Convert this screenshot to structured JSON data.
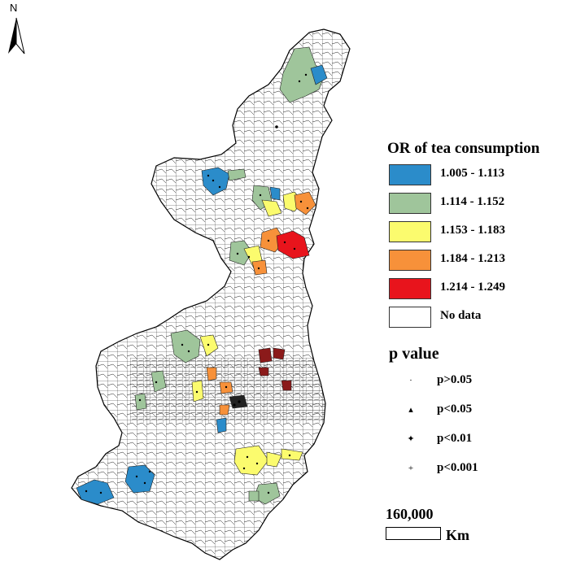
{
  "north_arrow": {
    "label": "N",
    "icon": "north-arrow-icon"
  },
  "legend": {
    "title": "OR of tea consumption",
    "classes": [
      {
        "label": "1.005 - 1.113",
        "color": "#2b8cca"
      },
      {
        "label": "1.114 - 1.152",
        "color": "#9fc59b"
      },
      {
        "label": "1.153 - 1.183",
        "color": "#fbfb6e"
      },
      {
        "label": "1.184 - 1.213",
        "color": "#f7913a"
      },
      {
        "label": "1.214 - 1.249",
        "color": "#e8141c"
      },
      {
        "label": "No data",
        "color": "#ffffff"
      }
    ]
  },
  "p_value": {
    "title": "p value",
    "items": [
      {
        "symbol": "·",
        "label": "p>0.05"
      },
      {
        "symbol": "▴",
        "label": "p<0.05"
      },
      {
        "symbol": "✦",
        "label": "p<0.01"
      },
      {
        "symbol": "+",
        "label": "p<0.001"
      }
    ]
  },
  "scale": {
    "value": "160,000",
    "unit": "Km"
  },
  "colors": {
    "outline": "#000000",
    "dark_red": "#8b1a1a"
  }
}
